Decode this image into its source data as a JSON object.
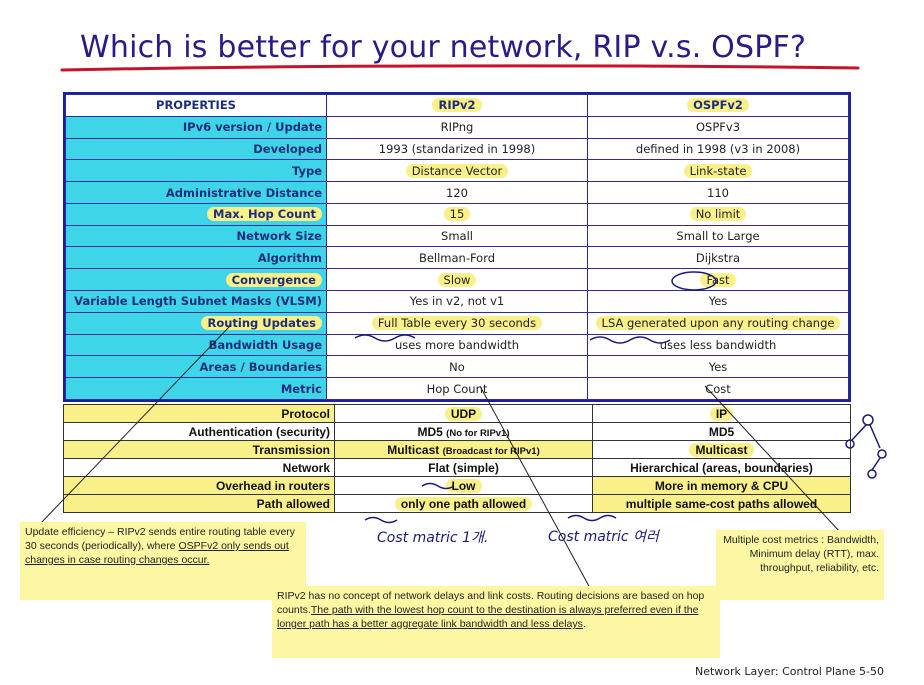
{
  "title": "Which is better for your network, RIP v.s. OSPF?",
  "table": {
    "headers": [
      "PROPERTIES",
      "RIPv2",
      "OSPFv2"
    ],
    "rows": [
      [
        "IPv6 version / Update",
        "RIPng",
        "OSPFv3"
      ],
      [
        "Developed",
        "1993 (standarized in 1998)",
        "defined in 1998 (v3 in 2008)"
      ],
      [
        "Type",
        "Distance Vector",
        "Link-state"
      ],
      [
        "Administrative Distance",
        "120",
        "110"
      ],
      [
        "Max. Hop Count",
        "15",
        "No limit"
      ],
      [
        "Network Size",
        "Small",
        "Small to Large"
      ],
      [
        "Algorithm",
        "Bellman-Ford",
        "Dijkstra"
      ],
      [
        "Convergence",
        "Slow",
        "Fast"
      ],
      [
        "Variable Length Subnet Masks (VLSM)",
        "Yes in v2, not v1",
        "Yes"
      ],
      [
        "Routing Updates",
        "Full Table every 30 seconds",
        "LSA generated upon any routing change"
      ],
      [
        "Bandwidth Usage",
        "uses more bandwidth",
        "uses less bandwidth"
      ],
      [
        "Areas / Boundaries",
        "No",
        "Yes"
      ],
      [
        "Metric",
        "Hop Count",
        "Cost"
      ]
    ]
  },
  "table2": {
    "rows": [
      [
        "Protocol",
        "UDP",
        "IP"
      ],
      [
        "Authentication (security)",
        "MD5",
        "MD5"
      ],
      [
        "Transmission",
        "Multicast",
        "Multicast"
      ],
      [
        "Network",
        "Flat (simple)",
        "Hierarchical (areas, boundaries)"
      ],
      [
        "Overhead in routers",
        "Low",
        "More in memory & CPU"
      ],
      [
        "Path allowed",
        "only one path allowed",
        "multiple same-cost paths allowed"
      ]
    ],
    "md5_note": "(No for RIPv1)",
    "multicast_note": "(Broadcast for RIPv1)"
  },
  "callouts": {
    "left_plain": "Update efficiency – RIPv2 sends entire routing table every 30 seconds (periodically), where ",
    "left_ul": "OSPFv2 only sends out changes in case routing changes occur.",
    "mid_plain": "RIPv2 has no concept of network delays and link costs. Routing decisions are based on hop counts.",
    "mid_ul": "The path with the lowest hop count to the destination is always preferred even if the longer path has a better aggregate link bandwidth and less delays",
    "mid_end": ".",
    "right": "Multiple cost metrics : Bandwidth, Minimum delay (RTT), max. throughput, reliability, etc."
  },
  "handwriting": {
    "cost1": "Cost matric 1개.",
    "cost2": "Cost matric 여러"
  },
  "footer": "Network Layer: Control Plane 5-50"
}
